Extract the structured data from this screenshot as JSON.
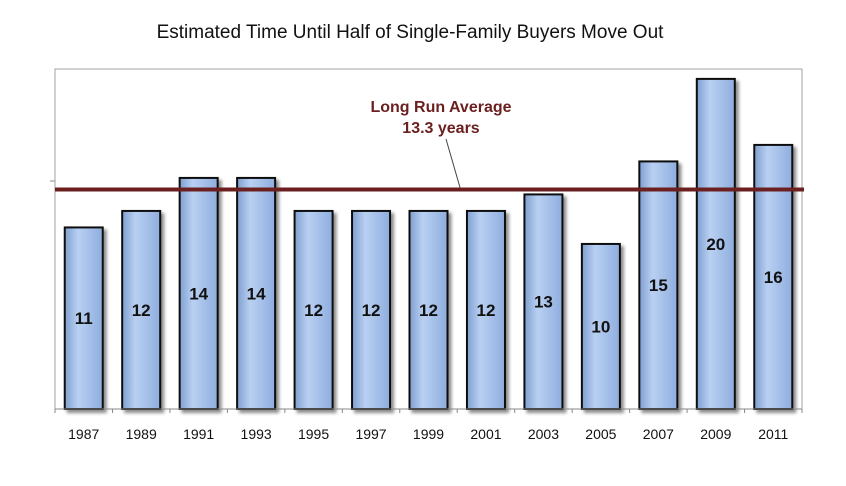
{
  "chart_data": {
    "type": "bar",
    "title": "Estimated Time Until Half of Single-Family Buyers Move Out",
    "categories": [
      "1987",
      "1989",
      "1991",
      "1993",
      "1995",
      "1997",
      "1999",
      "2001",
      "2003",
      "2005",
      "2007",
      "2009",
      "2011"
    ],
    "values": [
      11,
      12,
      14,
      14,
      12,
      12,
      12,
      12,
      13,
      10,
      15,
      20,
      16
    ],
    "ylim": [
      0,
      20.6
    ],
    "grid": false,
    "reference_line": {
      "value": 13.3,
      "label_line1": "Long Run Average",
      "label_line2": "13.3 years"
    },
    "colors": {
      "bar_fill": "#a9c4eb",
      "bar_stroke": "#111111",
      "reference_line": "#6b1f1f",
      "reference_label": "#6b1f1f",
      "plot_border": "#a0a0a0",
      "axis": "#888888"
    }
  }
}
